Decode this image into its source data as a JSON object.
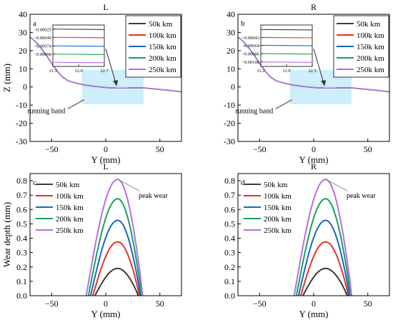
{
  "colors": {
    "50k km": "#3a3a3a",
    "100k km": "#e8302a",
    "150k km": "#1b63c8",
    "200k km": "#14a35a",
    "250k km": "#b86ee0",
    "band": "#c8ecfa"
  },
  "chart_data": [
    {
      "type": "line",
      "panel_letter": "a",
      "title": "L",
      "xlabel": "Y (mm)",
      "ylabel": "Z (mm)",
      "xlim": [
        -70,
        70
      ],
      "ylim": [
        -30,
        40
      ],
      "xticks": [
        "-50",
        "0",
        "50"
      ],
      "yticks": [
        "-30",
        "-20",
        "-10",
        "0",
        "10",
        "20",
        "30",
        "40"
      ],
      "legend": [
        "50k km",
        "100k km",
        "150k km",
        "200k km",
        "250k km"
      ],
      "legend_position": "top-right",
      "annotation": "running band",
      "running_band": {
        "x": [
          -22,
          35
        ],
        "y": [
          -9.5,
          9.5
        ]
      },
      "profile": {
        "x": [
          -70,
          -65,
          -60,
          -55,
          -50,
          -45,
          -40,
          -35,
          -30,
          -25,
          -20,
          -15,
          -10,
          -5,
          0,
          5,
          10,
          15,
          20,
          25,
          30,
          35,
          40,
          45,
          50,
          55,
          60,
          65,
          70
        ],
        "y": [
          27.5,
          25,
          21.5,
          17.5,
          13,
          8.8,
          5.5,
          3.5,
          2.5,
          1.8,
          1.2,
          0.7,
          0.3,
          0,
          -0.3,
          -0.5,
          -0.6,
          -0.6,
          -0.6,
          -0.5,
          -0.4,
          -0.5,
          -0.8,
          -1.1,
          -1.4,
          -1.7,
          -2.0,
          -2.3,
          -2.7
        ]
      },
      "inset": {
        "xlim": [
          11.3,
          12.7
        ],
        "xticks": [
          "11.3",
          "12.0",
          "12.7"
        ],
        "yticks": [
          "-0.00025",
          "-0.00049",
          "-0.00074",
          "-0.00098"
        ],
        "levels": [
          -0.00025,
          -0.00049,
          -0.00074,
          -0.00098,
          -0.00122
        ]
      }
    },
    {
      "type": "line",
      "panel_letter": "b",
      "title": "R",
      "xlabel": "Y (mm)",
      "ylabel": "",
      "xlim": [
        -70,
        70
      ],
      "ylim": [
        -30,
        40
      ],
      "xticks": [
        "-50",
        "0",
        "50"
      ],
      "yticks": [
        "-30",
        "-20",
        "-10",
        "0",
        "10",
        "20",
        "30",
        "40"
      ],
      "legend": [
        "50k km",
        "100k km",
        "150k km",
        "200k km",
        "250k km"
      ],
      "legend_position": "top-right",
      "annotation": "running band",
      "running_band": {
        "x": [
          -22,
          35
        ],
        "y": [
          -9.5,
          9.5
        ]
      },
      "profile": {
        "x": [
          -70,
          -65,
          -60,
          -55,
          -50,
          -45,
          -40,
          -35,
          -30,
          -25,
          -20,
          -15,
          -10,
          -5,
          0,
          5,
          10,
          15,
          20,
          25,
          30,
          35,
          40,
          45,
          50,
          55,
          60,
          65,
          70
        ],
        "y": [
          27.5,
          25,
          21.5,
          17.5,
          13,
          8.8,
          5.5,
          3.5,
          2.5,
          1.8,
          1.2,
          0.7,
          0.3,
          0,
          -0.3,
          -0.5,
          -0.6,
          -0.6,
          -0.6,
          -0.5,
          -0.4,
          -0.5,
          -0.8,
          -1.1,
          -1.4,
          -1.7,
          -2.0,
          -2.3,
          -2.7
        ]
      },
      "inset": {
        "xlim": [
          11.2,
          12.5
        ],
        "xticks": [
          "11.2",
          "11.9",
          "12.5"
        ],
        "yticks": [
          "-0.00043",
          "-0.00064",
          "-0.00086",
          "-0.00108"
        ],
        "levels": [
          -0.00022,
          -0.00043,
          -0.00064,
          -0.00086,
          -0.00108
        ]
      }
    },
    {
      "type": "line",
      "panel_letter": "c",
      "title": "L",
      "xlabel": "Y (mm)",
      "ylabel": "Wear depth (mm)",
      "xlim": [
        -70,
        70
      ],
      "ylim": [
        0,
        0.85
      ],
      "xticks": [
        "-50",
        "0",
        "50"
      ],
      "yticks": [
        "0.0",
        "0.1",
        "0.2",
        "0.3",
        "0.4",
        "0.5",
        "0.6",
        "0.7",
        "0.8"
      ],
      "legend": [
        "50k km",
        "100k km",
        "150k km",
        "200k km",
        "250k km"
      ],
      "legend_position": "top-left",
      "annotation": "peak wear",
      "series": [
        {
          "name": "50k km",
          "peak": 0.19,
          "x_start": -10,
          "x_end": 30,
          "peak_x": 11
        },
        {
          "name": "100k km",
          "peak": 0.375,
          "x_start": -12,
          "x_end": 31,
          "peak_x": 11
        },
        {
          "name": "150k km",
          "peak": 0.525,
          "x_start": -14,
          "x_end": 32,
          "peak_x": 11
        },
        {
          "name": "200k km",
          "peak": 0.675,
          "x_start": -16,
          "x_end": 33,
          "peak_x": 11
        },
        {
          "name": "250k km",
          "peak": 0.81,
          "x_start": -18,
          "x_end": 34,
          "peak_x": 11
        }
      ]
    },
    {
      "type": "line",
      "panel_letter": "d",
      "title": "R",
      "xlabel": "Y (mm)",
      "ylabel": "",
      "xlim": [
        -70,
        70
      ],
      "ylim": [
        0,
        0.85
      ],
      "xticks": [
        "-50",
        "0",
        "50"
      ],
      "yticks": [
        "0.0",
        "0.1",
        "0.2",
        "0.3",
        "0.4",
        "0.5",
        "0.6",
        "0.7",
        "0.8"
      ],
      "legend": [
        "50k km",
        "100k km",
        "150k km",
        "200k km",
        "250k km"
      ],
      "legend_position": "top-left",
      "annotation": "peak wear",
      "series": [
        {
          "name": "50k km",
          "peak": 0.19,
          "x_start": -10,
          "x_end": 31,
          "peak_x": 11
        },
        {
          "name": "100k km",
          "peak": 0.375,
          "x_start": -12,
          "x_end": 32,
          "peak_x": 11
        },
        {
          "name": "150k km",
          "peak": 0.525,
          "x_start": -14,
          "x_end": 33,
          "peak_x": 11
        },
        {
          "name": "200k km",
          "peak": 0.675,
          "x_start": -16,
          "x_end": 34,
          "peak_x": 11
        },
        {
          "name": "250k km",
          "peak": 0.81,
          "x_start": -18,
          "x_end": 35,
          "peak_x": 11
        }
      ]
    }
  ]
}
